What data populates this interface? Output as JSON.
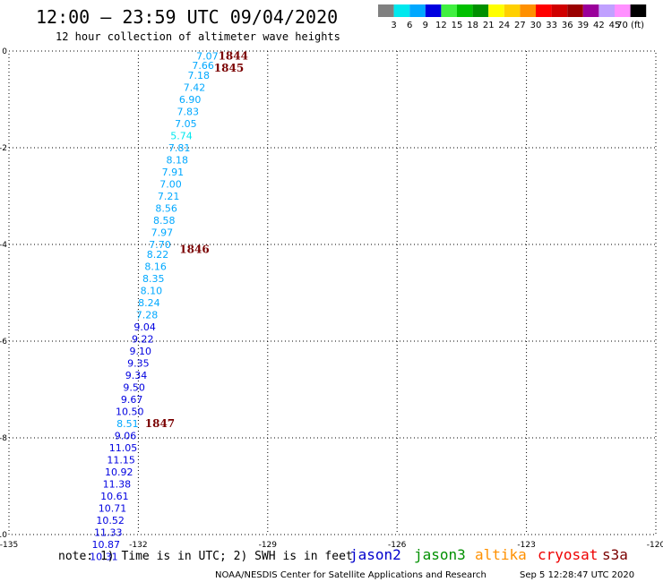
{
  "header": {
    "title": "12:00 – 23:59 UTC 09/04/2020",
    "subtitle": "12 hour collection of altimeter wave heights"
  },
  "legend": {
    "colors": [
      "#808080",
      "#00e8ee",
      "#00a8ff",
      "#0000e0",
      "#40f040",
      "#00c000",
      "#009000",
      "#ffff00",
      "#ffd000",
      "#ff9000",
      "#ff0000",
      "#d00000",
      "#9a0000",
      "#9a009a",
      "#c0a0ff",
      "#ff90ff",
      "#000000"
    ],
    "labels": [
      "3",
      "6",
      "9",
      "12",
      "15",
      "18",
      "21",
      "24",
      "27",
      "30",
      "33",
      "36",
      "39",
      "42",
      "45",
      "70 (ft)"
    ]
  },
  "note": "note: 1) Time is in UTC; 2) SWH is in feet",
  "satellites": [
    {
      "name": "jason2",
      "color": "#0000cc"
    },
    {
      "name": "jason3",
      "color": "#009000"
    },
    {
      "name": "altika",
      "color": "#ff9000"
    },
    {
      "name": "cryosat",
      "color": "#ee0000"
    },
    {
      "name": "s3a",
      "color": "#7a0000"
    }
  ],
  "footer": {
    "credit": "NOAA/NESDIS Center for Satellite Applications and Research",
    "timestamp": "Sep  5 12:28:47 UTC 2020"
  },
  "chart_data": {
    "type": "scatter",
    "title": "12:00 – 23:59 UTC 09/04/2020",
    "subtitle": "12 hour collection of altimeter wave heights",
    "xlim": [
      -135,
      -120
    ],
    "ylim": [
      -10,
      0
    ],
    "xticks": [
      -135,
      -132,
      -129,
      -126,
      -123,
      -120
    ],
    "xtick_labels": [
      "-135",
      "-132",
      "-129",
      "-126",
      "-123",
      "-120"
    ],
    "yticks": [
      0,
      -2,
      -4,
      -6,
      -8,
      -10
    ],
    "ytick_labels": [
      "0",
      "-2",
      "-4",
      "-6",
      "-8",
      "-10"
    ],
    "grid": true,
    "units": "ft",
    "points": [
      {
        "lon": -130.4,
        "lat": -0.1,
        "swh": "7.07"
      },
      {
        "lon": -130.5,
        "lat": -0.3,
        "swh": "7.66"
      },
      {
        "lon": -130.6,
        "lat": -0.5,
        "swh": "7.18"
      },
      {
        "lon": -130.7,
        "lat": -0.75,
        "swh": "7.42"
      },
      {
        "lon": -130.8,
        "lat": -1.0,
        "swh": "6.90"
      },
      {
        "lon": -130.85,
        "lat": -1.25,
        "swh": "7.83"
      },
      {
        "lon": -130.9,
        "lat": -1.5,
        "swh": "7.05"
      },
      {
        "lon": -131.0,
        "lat": -1.75,
        "swh": "5.74"
      },
      {
        "lon": -131.05,
        "lat": -2.0,
        "swh": "7.81"
      },
      {
        "lon": -131.1,
        "lat": -2.25,
        "swh": "8.18"
      },
      {
        "lon": -131.2,
        "lat": -2.5,
        "swh": "7.91"
      },
      {
        "lon": -131.25,
        "lat": -2.75,
        "swh": "7.00"
      },
      {
        "lon": -131.3,
        "lat": -3.0,
        "swh": "7.21"
      },
      {
        "lon": -131.35,
        "lat": -3.25,
        "swh": "8.56"
      },
      {
        "lon": -131.4,
        "lat": -3.5,
        "swh": "8.58"
      },
      {
        "lon": -131.45,
        "lat": -3.75,
        "swh": "7.97"
      },
      {
        "lon": -131.5,
        "lat": -4.0,
        "swh": "7.70"
      },
      {
        "lon": -131.55,
        "lat": -4.2,
        "swh": "8.22"
      },
      {
        "lon": -131.6,
        "lat": -4.45,
        "swh": "8.16"
      },
      {
        "lon": -131.65,
        "lat": -4.7,
        "swh": "8.35"
      },
      {
        "lon": -131.7,
        "lat": -4.95,
        "swh": "8.10"
      },
      {
        "lon": -131.75,
        "lat": -5.2,
        "swh": "8.24"
      },
      {
        "lon": -131.8,
        "lat": -5.45,
        "swh": "7.28"
      },
      {
        "lon": -131.85,
        "lat": -5.7,
        "swh": "9.04"
      },
      {
        "lon": -131.9,
        "lat": -5.95,
        "swh": "9.22"
      },
      {
        "lon": -131.95,
        "lat": -6.2,
        "swh": "9.10"
      },
      {
        "lon": -132.0,
        "lat": -6.45,
        "swh": "9.35"
      },
      {
        "lon": -132.05,
        "lat": -6.7,
        "swh": "9.34"
      },
      {
        "lon": -132.1,
        "lat": -6.95,
        "swh": "9.50"
      },
      {
        "lon": -132.15,
        "lat": -7.2,
        "swh": "9.67"
      },
      {
        "lon": -132.2,
        "lat": -7.45,
        "swh": "10.50"
      },
      {
        "lon": -132.25,
        "lat": -7.7,
        "swh": "8.51"
      },
      {
        "lon": -132.3,
        "lat": -7.95,
        "swh": "9.06"
      },
      {
        "lon": -132.35,
        "lat": -8.2,
        "swh": "11.05"
      },
      {
        "lon": -132.4,
        "lat": -8.45,
        "swh": "11.15"
      },
      {
        "lon": -132.45,
        "lat": -8.7,
        "swh": "10.92"
      },
      {
        "lon": -132.5,
        "lat": -8.95,
        "swh": "11.38"
      },
      {
        "lon": -132.55,
        "lat": -9.2,
        "swh": "10.61"
      },
      {
        "lon": -132.6,
        "lat": -9.45,
        "swh": "10.71"
      },
      {
        "lon": -132.65,
        "lat": -9.7,
        "swh": "10.52"
      },
      {
        "lon": -132.7,
        "lat": -9.95,
        "swh": "11.33"
      },
      {
        "lon": -132.75,
        "lat": -10.2,
        "swh": "10.87"
      },
      {
        "lon": -132.8,
        "lat": -10.45,
        "swh": "10.31"
      }
    ],
    "time_labels": [
      {
        "text": "1844",
        "lon": -129.8,
        "lat": -0.1
      },
      {
        "text": "1845",
        "lon": -129.9,
        "lat": -0.35
      },
      {
        "text": "1846",
        "lon": -130.7,
        "lat": -4.1
      },
      {
        "text": "1847",
        "lon": -131.5,
        "lat": -7.7
      }
    ]
  }
}
